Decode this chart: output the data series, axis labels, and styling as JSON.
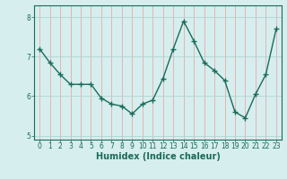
{
  "x": [
    0,
    1,
    2,
    3,
    4,
    5,
    6,
    7,
    8,
    9,
    10,
    11,
    12,
    13,
    14,
    15,
    16,
    17,
    18,
    19,
    20,
    21,
    22,
    23
  ],
  "y": [
    7.2,
    6.85,
    6.55,
    6.3,
    6.3,
    6.3,
    5.95,
    5.8,
    5.75,
    5.55,
    5.8,
    5.9,
    6.45,
    7.2,
    7.9,
    7.4,
    6.85,
    6.65,
    6.4,
    5.6,
    5.45,
    6.05,
    6.55,
    7.7
  ],
  "line_color": "#1a6b5a",
  "marker": "+",
  "marker_size": 4,
  "bg_color": "#d6eeee",
  "vgrid_color": "#e8aaaa",
  "hgrid_color": "#b0d4d4",
  "axis_color": "#1a6b5a",
  "xlabel": "Humidex (Indice chaleur)",
  "xlabel_fontsize": 7,
  "ylim": [
    4.9,
    8.3
  ],
  "xlim": [
    -0.5,
    23.5
  ],
  "yticks": [
    5,
    6,
    7,
    8
  ],
  "xticks": [
    0,
    1,
    2,
    3,
    4,
    5,
    6,
    7,
    8,
    9,
    10,
    11,
    12,
    13,
    14,
    15,
    16,
    17,
    18,
    19,
    20,
    21,
    22,
    23
  ],
  "tick_fontsize": 5.5,
  "line_width": 1.0
}
